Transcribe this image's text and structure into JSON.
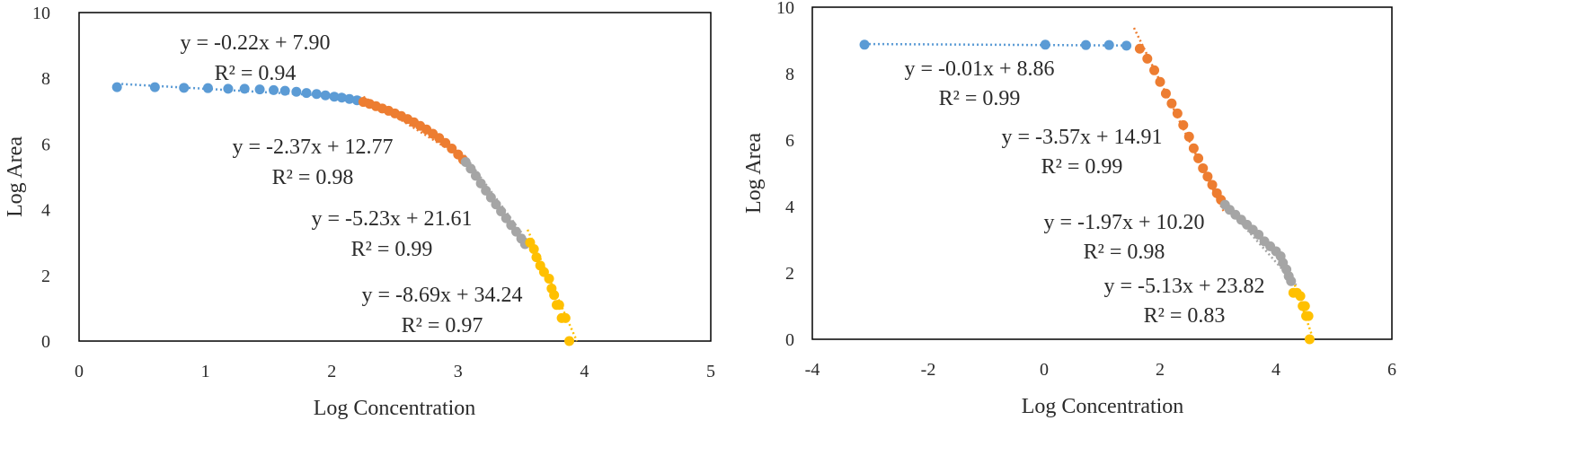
{
  "chart_data": [
    {
      "type": "scatter",
      "xlabel": "Log Concentration",
      "ylabel": "Log Area",
      "xlim": [
        0,
        5
      ],
      "ylim": [
        0,
        10
      ],
      "x_ticks": [
        "0",
        "1",
        "2",
        "3",
        "4",
        "5"
      ],
      "y_ticks": [
        "0",
        "2",
        "4",
        "6",
        "8",
        "10"
      ],
      "grid": false,
      "series": [
        {
          "color": "#5b9bd5",
          "trendline": {
            "slope": -0.22,
            "intercept": 7.9,
            "x_range": [
              0.3,
              2.25
            ]
          },
          "equation": "y = -0.22x + 7.90",
          "r2": "R² = 0.94",
          "points": [
            [
              0.3,
              7.73
            ],
            [
              0.6,
              7.73
            ],
            [
              0.83,
              7.71
            ],
            [
              1.02,
              7.7
            ],
            [
              1.18,
              7.68
            ],
            [
              1.31,
              7.68
            ],
            [
              1.43,
              7.66
            ],
            [
              1.54,
              7.64
            ],
            [
              1.63,
              7.62
            ],
            [
              1.72,
              7.59
            ],
            [
              1.8,
              7.55
            ],
            [
              1.88,
              7.52
            ],
            [
              1.95,
              7.48
            ],
            [
              2.02,
              7.44
            ],
            [
              2.08,
              7.41
            ],
            [
              2.14,
              7.37
            ],
            [
              2.2,
              7.33
            ]
          ]
        },
        {
          "color": "#ed7d31",
          "trendline": {
            "slope": -2.37,
            "intercept": 12.77,
            "x_range": [
              2.25,
              3.05
            ]
          },
          "equation": "y = -2.37x + 12.77",
          "r2": "R² = 0.98",
          "points": [
            [
              2.25,
              7.28
            ],
            [
              2.3,
              7.22
            ],
            [
              2.35,
              7.15
            ],
            [
              2.4,
              7.08
            ],
            [
              2.45,
              7.01
            ],
            [
              2.5,
              6.93
            ],
            [
              2.55,
              6.85
            ],
            [
              2.6,
              6.76
            ],
            [
              2.65,
              6.66
            ],
            [
              2.7,
              6.55
            ],
            [
              2.75,
              6.44
            ],
            [
              2.8,
              6.31
            ],
            [
              2.85,
              6.18
            ],
            [
              2.9,
              6.03
            ],
            [
              2.95,
              5.86
            ],
            [
              3.0,
              5.68
            ],
            [
              3.04,
              5.52
            ]
          ]
        },
        {
          "color": "#a5a5a5",
          "trendline": {
            "slope": -5.23,
            "intercept": 21.61,
            "x_range": [
              3.05,
              3.55
            ]
          },
          "equation": "y = -5.23x + 21.61",
          "r2": "R² = 0.99",
          "points": [
            [
              3.06,
              5.45
            ],
            [
              3.1,
              5.25
            ],
            [
              3.14,
              5.03
            ],
            [
              3.18,
              4.8
            ],
            [
              3.22,
              4.58
            ],
            [
              3.26,
              4.37
            ],
            [
              3.3,
              4.16
            ],
            [
              3.34,
              3.95
            ],
            [
              3.38,
              3.74
            ],
            [
              3.42,
              3.53
            ],
            [
              3.46,
              3.33
            ],
            [
              3.5,
              3.12
            ],
            [
              3.53,
              2.95
            ]
          ]
        },
        {
          "color": "#ffc000",
          "trendline": {
            "slope": -8.69,
            "intercept": 34.24,
            "x_range": [
              3.55,
              3.94
            ]
          },
          "equation": "y = -8.69x + 34.24",
          "r2": "R² = 0.97",
          "points": [
            [
              3.57,
              3.0
            ],
            [
              3.6,
              2.8
            ],
            [
              3.62,
              2.55
            ],
            [
              3.65,
              2.3
            ],
            [
              3.68,
              2.1
            ],
            [
              3.72,
              1.9
            ],
            [
              3.74,
              1.6
            ],
            [
              3.76,
              1.4
            ],
            [
              3.78,
              1.1
            ],
            [
              3.8,
              1.1
            ],
            [
              3.82,
              0.7
            ],
            [
              3.85,
              0.7
            ],
            [
              3.88,
              0.0
            ]
          ]
        }
      ]
    },
    {
      "type": "scatter",
      "xlabel": "Log Concentration",
      "ylabel": "Log Area",
      "xlim": [
        -4,
        6
      ],
      "ylim": [
        0,
        10
      ],
      "x_ticks": [
        "-4",
        "-2",
        "0",
        "2",
        "4",
        "6"
      ],
      "y_ticks": [
        "0",
        "2",
        "4",
        "6",
        "8",
        "10"
      ],
      "grid": false,
      "series": [
        {
          "color": "#5b9bd5",
          "trendline": {
            "slope": -0.01,
            "intercept": 8.86,
            "x_range": [
              -3.1,
              1.5
            ]
          },
          "equation": "y = -0.01x + 8.86",
          "r2": "R² = 0.99",
          "points": [
            [
              -3.1,
              8.87
            ],
            [
              0.02,
              8.87
            ],
            [
              0.72,
              8.86
            ],
            [
              1.12,
              8.86
            ],
            [
              1.42,
              8.84
            ]
          ]
        },
        {
          "color": "#ed7d31",
          "trendline": {
            "slope": -3.57,
            "intercept": 14.91,
            "x_range": [
              1.55,
              3.1
            ]
          },
          "equation": "y = -3.57x + 14.91",
          "r2": "R² = 0.99",
          "points": [
            [
              1.65,
              8.75
            ],
            [
              1.78,
              8.45
            ],
            [
              1.9,
              8.1
            ],
            [
              2.0,
              7.75
            ],
            [
              2.1,
              7.4
            ],
            [
              2.2,
              7.1
            ],
            [
              2.3,
              6.8
            ],
            [
              2.4,
              6.45
            ],
            [
              2.5,
              6.1
            ],
            [
              2.58,
              5.75
            ],
            [
              2.66,
              5.45
            ],
            [
              2.74,
              5.15
            ],
            [
              2.82,
              4.9
            ],
            [
              2.9,
              4.65
            ],
            [
              2.98,
              4.4
            ],
            [
              3.05,
              4.2
            ]
          ]
        },
        {
          "color": "#a5a5a5",
          "trendline": {
            "slope": -1.97,
            "intercept": 10.2,
            "x_range": [
              3.1,
              4.35
            ]
          },
          "equation": "y = -1.97x + 10.20",
          "r2": "R² = 0.98",
          "points": [
            [
              3.12,
              4.05
            ],
            [
              3.2,
              3.9
            ],
            [
              3.3,
              3.75
            ],
            [
              3.4,
              3.6
            ],
            [
              3.5,
              3.45
            ],
            [
              3.6,
              3.3
            ],
            [
              3.7,
              3.15
            ],
            [
              3.8,
              2.95
            ],
            [
              3.9,
              2.8
            ],
            [
              4.0,
              2.65
            ],
            [
              4.08,
              2.5
            ],
            [
              4.12,
              2.3
            ],
            [
              4.18,
              2.1
            ],
            [
              4.22,
              1.9
            ],
            [
              4.26,
              1.75
            ]
          ]
        },
        {
          "color": "#ffc000",
          "trendline": {
            "slope": -5.13,
            "intercept": 23.82,
            "x_range": [
              4.25,
              4.65
            ]
          },
          "equation": "y = -5.13x + 23.82",
          "r2": "R² = 0.83",
          "points": [
            [
              4.3,
              1.4
            ],
            [
              4.36,
              1.4
            ],
            [
              4.42,
              1.3
            ],
            [
              4.46,
              1.0
            ],
            [
              4.5,
              1.0
            ],
            [
              4.52,
              0.7
            ],
            [
              4.56,
              0.7
            ],
            [
              4.58,
              0.0
            ]
          ]
        }
      ]
    }
  ]
}
